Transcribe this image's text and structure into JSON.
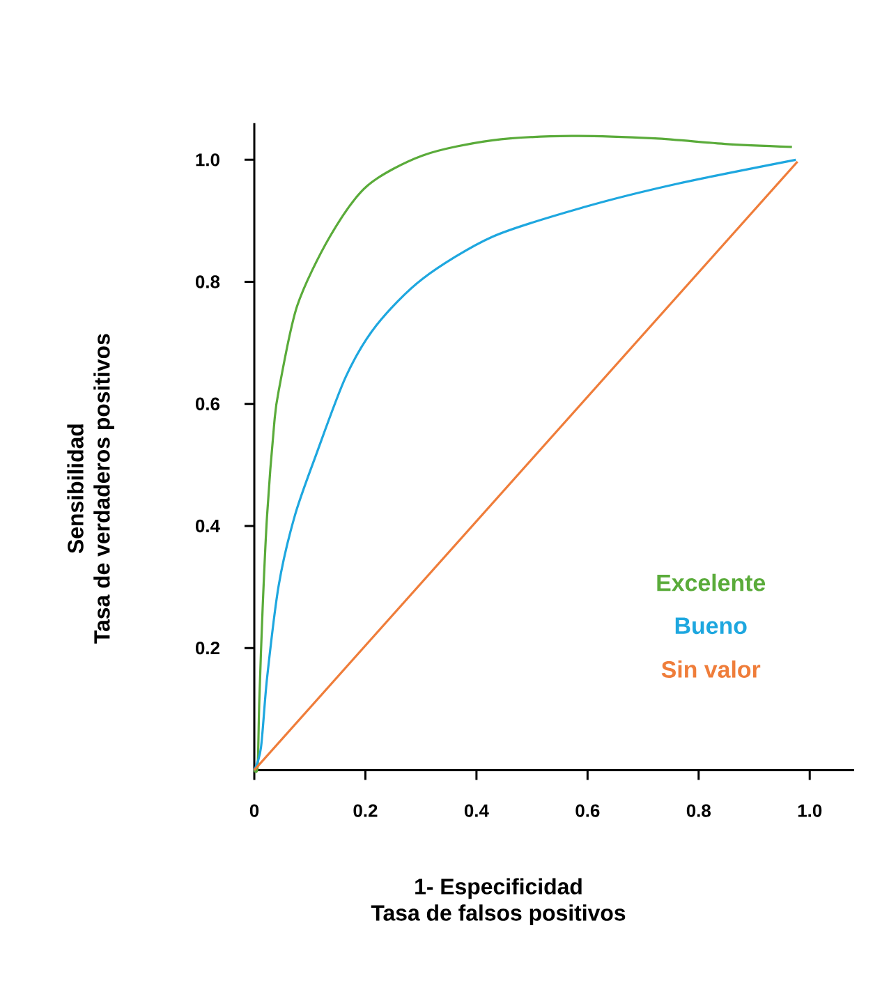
{
  "chart_data": {
    "type": "line",
    "xlabel": "1- Especificidad",
    "ylabel": "Tasa de verdaderos positivos",
    "annotations": [
      "Tasa de falsos positivos",
      "Sensibilidad"
    ],
    "xlim": [
      0,
      1.08
    ],
    "ylim": [
      0,
      1.06
    ],
    "xticks": [
      {
        "value": 0,
        "label": "0"
      },
      0.2,
      0.4,
      0.6,
      0.8,
      {
        "value": 1,
        "label": "1.0"
      }
    ],
    "yticks": [
      0.2,
      0.4,
      0.6,
      0.8,
      {
        "value": 1,
        "label": "1.0"
      }
    ],
    "grid": false,
    "legend": "right",
    "marker": "none",
    "series": [
      {
        "name": "Excelente",
        "color": "#5aab3a",
        "x": [
          0,
          0.006,
          0.009,
          0.015,
          0.023,
          0.036,
          0.044,
          0.077,
          0.136,
          0.203,
          0.303,
          0.429,
          0.571,
          0.721,
          0.847,
          0.968
        ],
        "values": [
          0,
          0.006,
          0.113,
          0.265,
          0.417,
          0.569,
          0.622,
          0.76,
          0.874,
          0.957,
          1.007,
          1.032,
          1.039,
          1.035,
          1.026,
          1.021
        ]
      },
      {
        "name": "Bueno",
        "color": "#1ea7df",
        "x": [
          0,
          0.012,
          0.023,
          0.044,
          0.073,
          0.111,
          0.165,
          0.22,
          0.303,
          0.429,
          0.596,
          0.763,
          0.975
        ],
        "values": [
          0,
          0.037,
          0.151,
          0.303,
          0.417,
          0.516,
          0.645,
          0.729,
          0.805,
          0.874,
          0.923,
          0.961,
          1.0
        ]
      },
      {
        "name": "Sin valor",
        "color": "#ef7d3a",
        "x": [
          0,
          0.978
        ],
        "values": [
          0,
          0.997
        ]
      }
    ]
  }
}
